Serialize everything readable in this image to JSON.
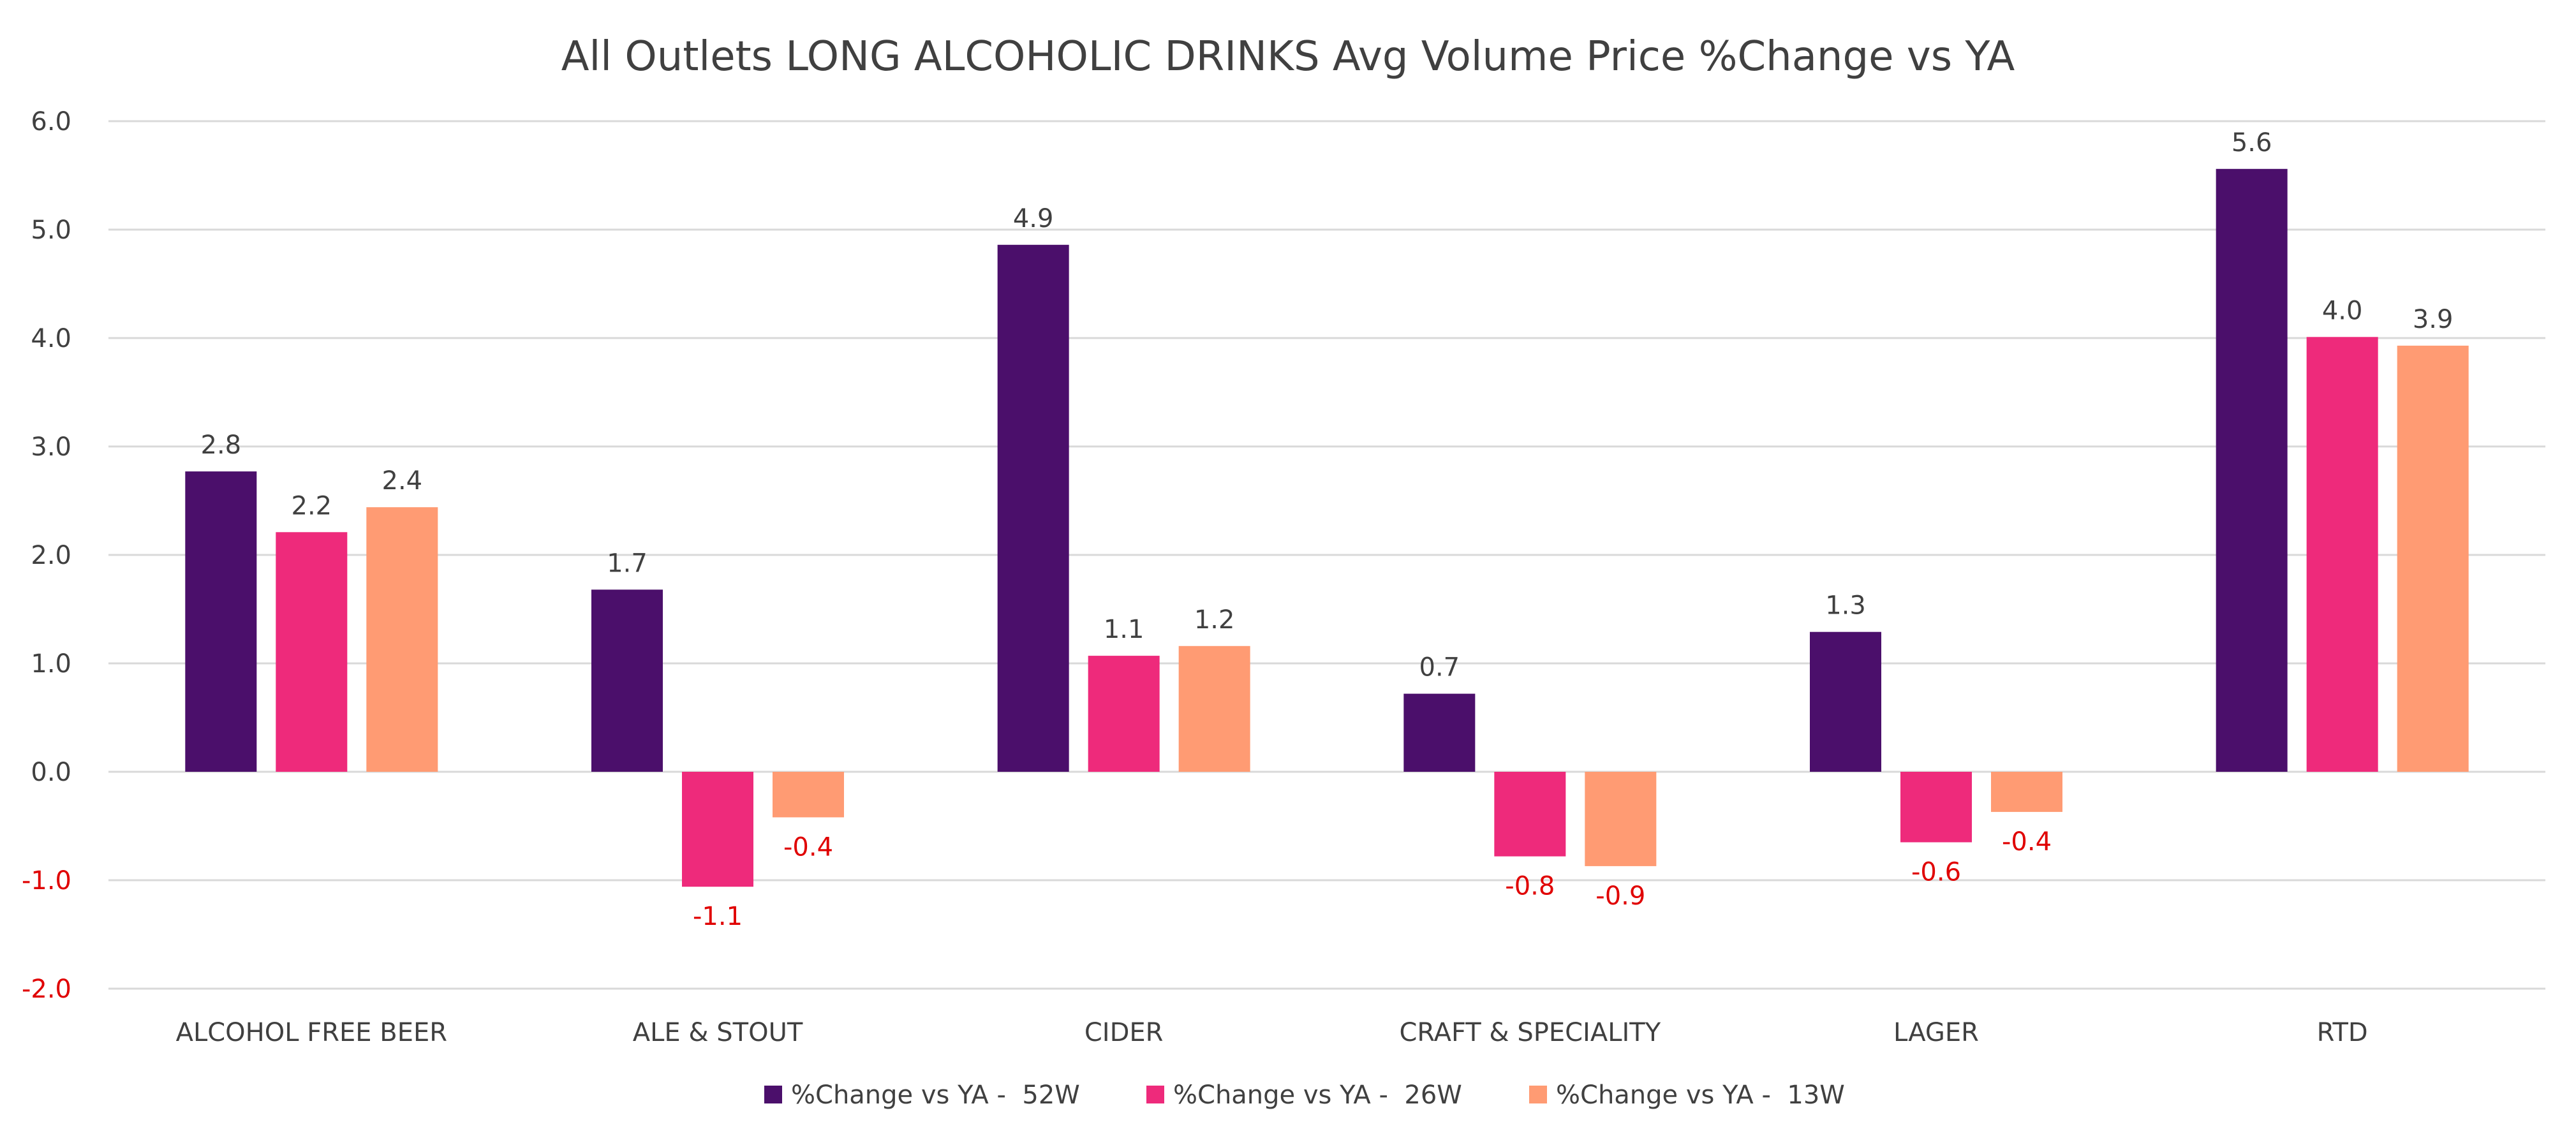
{
  "chart_data": {
    "type": "bar",
    "title": "All Outlets LONG ALCOHOLIC DRINKS Avg Volume Price %Change vs YA",
    "xlabel": "",
    "ylabel": "",
    "ylim": [
      -2.0,
      6.0
    ],
    "yticks": [
      6.0,
      5.0,
      4.0,
      3.0,
      2.0,
      1.0,
      0.0,
      -1.0,
      -2.0
    ],
    "ytick_labels": [
      "6.0",
      "5.0",
      "4.0",
      "3.0",
      "2.0",
      "1.0",
      "0.0",
      "-1.0",
      "-2.0"
    ],
    "grid": true,
    "legend_position": "bottom",
    "categories": [
      "ALCOHOL FREE BEER",
      "ALE & STOUT",
      "CIDER",
      "CRAFT & SPECIALITY",
      "LAGER",
      "RTD"
    ],
    "series": [
      {
        "name": "%Change vs YA -  52W",
        "color": "#4b0f6b",
        "values": [
          2.77,
          1.68,
          4.86,
          0.72,
          1.29,
          5.56
        ],
        "labels": [
          "2.8",
          "1.7",
          "4.9",
          "0.7",
          "1.3",
          "5.6"
        ]
      },
      {
        "name": "%Change vs YA -  26W",
        "color": "#ee2a7b",
        "values": [
          2.21,
          -1.06,
          1.07,
          -0.78,
          -0.65,
          4.01
        ],
        "labels": [
          "2.2",
          "-1.1",
          "1.1",
          "-0.8",
          "-0.6",
          "4.0"
        ]
      },
      {
        "name": "%Change vs YA -  13W",
        "color": "#ff9b73",
        "values": [
          2.44,
          -0.42,
          1.16,
          -0.87,
          -0.37,
          3.93
        ],
        "labels": [
          "2.4",
          "-0.4",
          "1.2",
          "-0.9",
          "-0.4",
          "3.9"
        ]
      }
    ],
    "negative_label_color": "#e00000"
  }
}
